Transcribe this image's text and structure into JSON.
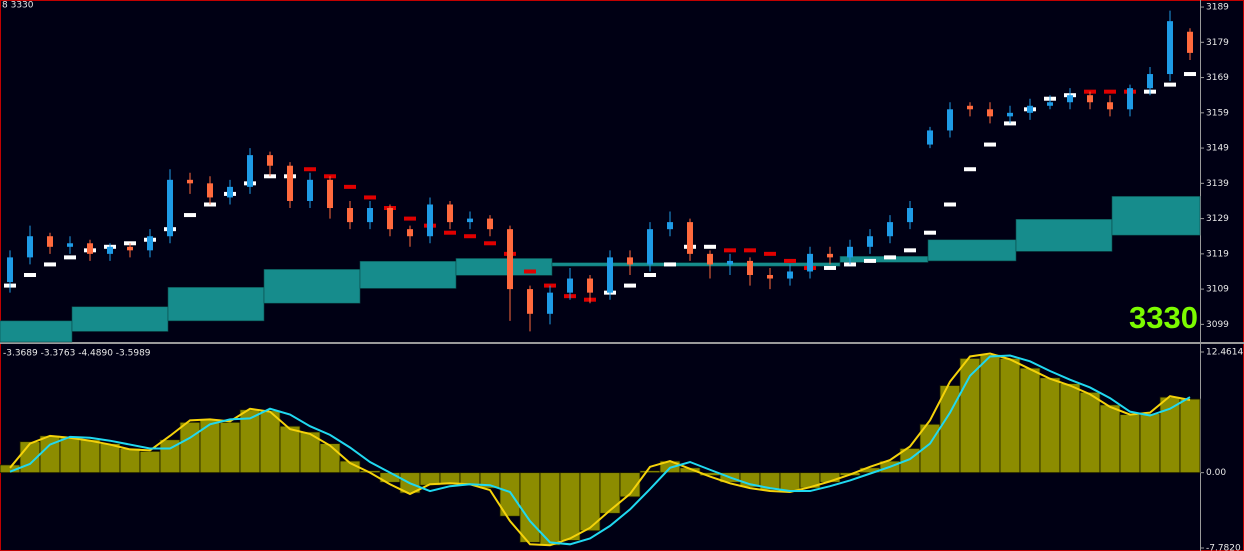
{
  "chart_data": [
    {
      "type": "candlestick",
      "title": "8 3330",
      "price_label": "3330",
      "price_label_color": "#7cfc00",
      "up_color": "#1e9be6",
      "down_color": "#ff6a3d",
      "doji_color": "#3cd23c",
      "open": [
        3111,
        3118,
        3124,
        3121,
        3122,
        3119,
        3121,
        3120,
        3124,
        3140,
        3139,
        3135,
        3138,
        3147,
        3144,
        3134,
        3140,
        3132,
        3128,
        3132,
        3126,
        3124,
        3133,
        3128,
        3129,
        3126,
        3109,
        3102,
        3108,
        3112,
        3108,
        3118,
        3116,
        3126,
        3128,
        3119,
        3116,
        3117,
        3113,
        3112,
        3114,
        3119,
        3118,
        3121,
        3124,
        3128,
        3150,
        3154,
        3161,
        3160,
        3158,
        3159,
        3161,
        3162,
        3164,
        3162,
        3160,
        3166,
        3170,
        3182
      ],
      "high": [
        3120,
        3127,
        3125,
        3124,
        3123,
        3122,
        3122,
        3126,
        3143,
        3142,
        3141,
        3140,
        3149,
        3148,
        3145,
        3142,
        3141,
        3134,
        3134,
        3133,
        3127,
        3135,
        3134,
        3131,
        3130,
        3127,
        3110,
        3110,
        3115,
        3113,
        3120,
        3120,
        3128,
        3131,
        3129,
        3120,
        3119,
        3118,
        3115,
        3116,
        3121,
        3121,
        3123,
        3126,
        3130,
        3134,
        3155,
        3162,
        3162,
        3162,
        3161,
        3163,
        3164,
        3166,
        3165,
        3164,
        3167,
        3172,
        3188,
        3183
      ],
      "low": [
        3108,
        3116,
        3119,
        3119,
        3117,
        3117,
        3118,
        3118,
        3122,
        3136,
        3133,
        3133,
        3136,
        3141,
        3132,
        3132,
        3129,
        3126,
        3126,
        3124,
        3121,
        3122,
        3126,
        3126,
        3124,
        3100,
        3097,
        3099,
        3106,
        3105,
        3106,
        3113,
        3114,
        3124,
        3117,
        3112,
        3113,
        3110,
        3109,
        3110,
        3112,
        3116,
        3116,
        3119,
        3122,
        3126,
        3149,
        3152,
        3158,
        3156,
        3156,
        3157,
        3160,
        3160,
        3160,
        3158,
        3158,
        3164,
        3168,
        3174
      ],
      "close": [
        3118,
        3124,
        3121,
        3122,
        3119,
        3121,
        3120,
        3124,
        3140,
        3139,
        3135,
        3138,
        3147,
        3144,
        3134,
        3140,
        3132,
        3128,
        3132,
        3126,
        3124,
        3133,
        3128,
        3129,
        3126,
        3109,
        3102,
        3108,
        3112,
        3108,
        3118,
        3116,
        3126,
        3128,
        3119,
        3116,
        3117,
        3113,
        3112,
        3114,
        3119,
        3118,
        3121,
        3124,
        3128,
        3132,
        3154,
        3160,
        3160,
        3158,
        3159,
        3161,
        3162,
        3164,
        3162,
        3160,
        3166,
        3170,
        3185,
        3176
      ],
      "trend_series": [
        {
          "color": "#ffffff",
          "values": [
            3110,
            3113,
            3116,
            3118,
            3120,
            3121,
            3122,
            3123,
            3126,
            3130,
            3133,
            3136,
            3139,
            3141,
            3141,
            null,
            null,
            null,
            null,
            null,
            null,
            null,
            null,
            null,
            null,
            null,
            null,
            null,
            null,
            null,
            3108,
            3110,
            3113,
            3116,
            3121,
            3121,
            null,
            null,
            null,
            null,
            null,
            3115,
            3116,
            3117,
            3118,
            3120,
            3125,
            3133,
            3143,
            3150,
            3156,
            3160,
            3163,
            3164,
            null,
            null,
            null,
            3165,
            3167,
            3170
          ]
        },
        {
          "color": "#e00000",
          "values": [
            null,
            null,
            null,
            null,
            null,
            null,
            null,
            null,
            null,
            null,
            null,
            null,
            null,
            null,
            null,
            3143,
            3141,
            3138,
            3135,
            3132,
            3129,
            3127,
            3125,
            3124,
            3122,
            3119,
            3114,
            3110,
            3107,
            3106,
            null,
            null,
            null,
            null,
            null,
            null,
            3120,
            3120,
            3119,
            3117,
            3115,
            null,
            null,
            null,
            null,
            null,
            null,
            null,
            null,
            null,
            null,
            null,
            null,
            null,
            3165,
            3165,
            3165,
            null,
            null,
            null
          ]
        }
      ],
      "cloud": {
        "color": "#168c8c",
        "x_start": [
          0,
          3.6,
          8.4,
          13.2,
          18,
          22.8,
          27.6,
          42,
          46.4,
          50.8,
          55.6
        ],
        "x_end": [
          3.6,
          8.4,
          13.2,
          18,
          22.8,
          27.6,
          42,
          46.4,
          50.8,
          55.6,
          60
        ],
        "tops": [
          3100,
          3104,
          3109.5,
          3114.6,
          3116.9,
          3117.7,
          3116.5,
          3118.3,
          3123,
          3128.8,
          3135.3
        ],
        "bottoms": [
          3094,
          3097,
          3100,
          3105,
          3109.2,
          3112.9,
          3115.5,
          3116.6,
          3117,
          3119.7,
          3124.3
        ]
      },
      "xlim": [
        0,
        60
      ],
      "ylim": [
        3094,
        3191
      ],
      "yticks": [
        3189,
        3179,
        3169,
        3159,
        3149,
        3139,
        3129,
        3119,
        3109,
        3099
      ]
    },
    {
      "type": "bar",
      "title": "-3.3689 -3.3763 -4.4890 -3.5989",
      "color": "#8c8c00",
      "values": [
        0.8,
        3.2,
        3.8,
        3.7,
        3.4,
        3.0,
        2.5,
        2.2,
        3.4,
        5.2,
        5.5,
        5.2,
        6.5,
        6.4,
        4.8,
        4.2,
        3.0,
        1.2,
        0.2,
        -1.0,
        -2.1,
        -1.3,
        -1.1,
        -1.2,
        -1.6,
        -4.5,
        -7.2,
        -7.5,
        -7.0,
        -6.0,
        -4.2,
        -2.5,
        0.2,
        1.2,
        0.5,
        -0.3,
        -1.0,
        -1.5,
        -1.8,
        -2.0,
        -1.6,
        -1.0,
        -0.3,
        0.5,
        1.2,
        2.5,
        5.0,
        9.0,
        11.8,
        12.2,
        11.8,
        10.8,
        9.8,
        9.2,
        8.3,
        7.0,
        6.0,
        6.1,
        7.8,
        7.6
      ],
      "lines": [
        {
          "color": "#f5d20a",
          "values": [
            0.5,
            3.0,
            3.8,
            3.6,
            3.3,
            2.9,
            2.4,
            2.3,
            3.8,
            5.4,
            5.5,
            5.3,
            6.6,
            6.3,
            4.5,
            4.0,
            2.8,
            1.0,
            0.0,
            -1.2,
            -2.2,
            -1.2,
            -1.1,
            -1.2,
            -1.8,
            -5.0,
            -7.4,
            -7.5,
            -6.8,
            -5.7,
            -3.9,
            -2.2,
            0.6,
            1.2,
            0.4,
            -0.4,
            -1.1,
            -1.6,
            -1.9,
            -2.0,
            -1.5,
            -0.9,
            -0.2,
            0.6,
            1.3,
            2.7,
            5.4,
            9.4,
            12.0,
            12.3,
            11.7,
            10.7,
            9.7,
            9.0,
            8.1,
            6.8,
            6.0,
            6.2,
            7.9,
            7.5
          ]
        },
        {
          "color": "#20d8f0",
          "values": [
            0.1,
            0.9,
            2.9,
            3.7,
            3.6,
            3.3,
            2.9,
            2.5,
            2.5,
            3.6,
            5.0,
            5.5,
            5.6,
            6.6,
            6.0,
            4.8,
            3.9,
            2.6,
            1.1,
            0.0,
            -1.1,
            -1.9,
            -1.4,
            -1.2,
            -1.3,
            -2.0,
            -5.0,
            -7.2,
            -7.4,
            -6.8,
            -5.5,
            -3.8,
            -1.7,
            0.5,
            1.1,
            0.3,
            -0.5,
            -1.2,
            -1.6,
            -1.9,
            -1.9,
            -1.4,
            -0.8,
            -0.1,
            0.6,
            1.4,
            3.0,
            6.2,
            10.0,
            12.0,
            12.1,
            11.5,
            10.5,
            9.6,
            8.8,
            7.7,
            6.3,
            5.9,
            6.6,
            7.8
          ]
        }
      ],
      "ylim": [
        -7.782,
        12.4614
      ],
      "yticks": [
        12.4614,
        {
          "value": 0,
          "label": "0.00"
        },
        {
          "value": -7.782,
          "label": "-7.7820"
        }
      ]
    }
  ]
}
